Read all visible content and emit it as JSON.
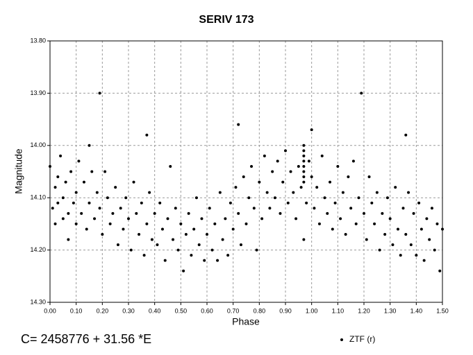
{
  "chart_data": {
    "type": "scatter",
    "title": "SERIV 173",
    "xlabel": "Phase",
    "ylabel": "Magnitude",
    "annotation": "C= 2458776 + 31.56 *E",
    "grid": true,
    "legend_position": "bottom-right",
    "xlim": [
      0,
      1.5
    ],
    "ylim": [
      14.3,
      13.8
    ],
    "xticks": [
      {
        "value": 0,
        "label": "0.00"
      },
      {
        "value": 0.1,
        "label": "0.10"
      },
      {
        "value": 0.2,
        "label": "0.20"
      },
      {
        "value": 0.3,
        "label": "0.30"
      },
      {
        "value": 0.4,
        "label": "0.40"
      },
      {
        "value": 0.5,
        "label": "0.50"
      },
      {
        "value": 0.6,
        "label": "0.60"
      },
      {
        "value": 0.7,
        "label": "0.70"
      },
      {
        "value": 0.8,
        "label": "0.80"
      },
      {
        "value": 0.9,
        "label": "0.90"
      },
      {
        "value": 1.0,
        "label": "1.00"
      },
      {
        "value": 1.1,
        "label": "1.10"
      },
      {
        "value": 1.2,
        "label": "1.20"
      },
      {
        "value": 1.3,
        "label": "1.30"
      },
      {
        "value": 1.4,
        "label": "1.40"
      },
      {
        "value": 1.5,
        "label": "1.50"
      }
    ],
    "yticks": [
      {
        "value": 13.8,
        "label": "13.80"
      },
      {
        "value": 13.9,
        "label": "13.90"
      },
      {
        "value": 14.0,
        "label": "14.00"
      },
      {
        "value": 14.1,
        "label": "14.10"
      },
      {
        "value": 14.2,
        "label": "14.20"
      },
      {
        "value": 14.3,
        "label": "14.30"
      }
    ],
    "x": [
      0.0,
      0.01,
      0.02,
      0.02,
      0.03,
      0.03,
      0.04,
      0.05,
      0.05,
      0.06,
      0.07,
      0.07,
      0.08,
      0.09,
      0.1,
      0.1,
      0.11,
      0.12,
      0.13,
      0.14,
      0.15,
      0.15,
      0.16,
      0.17,
      0.18,
      0.19,
      0.19,
      0.2,
      0.21,
      0.22,
      0.23,
      0.24,
      0.25,
      0.26,
      0.27,
      0.28,
      0.29,
      0.3,
      0.31,
      0.32,
      0.33,
      0.34,
      0.35,
      0.36,
      0.37,
      0.37,
      0.38,
      0.39,
      0.4,
      0.41,
      0.42,
      0.43,
      0.44,
      0.45,
      0.46,
      0.47,
      0.48,
      0.49,
      0.5,
      0.51,
      0.52,
      0.53,
      0.54,
      0.55,
      0.56,
      0.57,
      0.58,
      0.59,
      0.6,
      0.61,
      0.62,
      0.63,
      0.64,
      0.65,
      0.66,
      0.67,
      0.68,
      0.69,
      0.7,
      0.71,
      0.72,
      0.72,
      0.73,
      0.74,
      0.75,
      0.76,
      0.77,
      0.78,
      0.79,
      0.8,
      0.81,
      0.82,
      0.83,
      0.84,
      0.85,
      0.86,
      0.87,
      0.88,
      0.89,
      0.9,
      0.91,
      0.92,
      0.93,
      0.94,
      0.95,
      0.96,
      0.97,
      0.97,
      0.97,
      0.97,
      0.97,
      0.97,
      0.97,
      0.97,
      0.97,
      0.98,
      0.99,
      1.0,
      1.0,
      1.01,
      1.02,
      1.03,
      1.04,
      1.05,
      1.06,
      1.07,
      1.08,
      1.09,
      1.1,
      1.11,
      1.12,
      1.13,
      1.14,
      1.15,
      1.16,
      1.17,
      1.18,
      1.19,
      1.2,
      1.21,
      1.22,
      1.23,
      1.24,
      1.25,
      1.26,
      1.27,
      1.28,
      1.29,
      1.3,
      1.31,
      1.32,
      1.33,
      1.34,
      1.35,
      1.36,
      1.36,
      1.37,
      1.38,
      1.39,
      1.4,
      1.41,
      1.42,
      1.43,
      1.44,
      1.45,
      1.46,
      1.47,
      1.48,
      1.49,
      1.5
    ],
    "series": [
      {
        "name": "ZTF (r)",
        "color": "#000000",
        "values": [
          14.04,
          14.12,
          14.08,
          14.15,
          14.06,
          14.11,
          14.02,
          14.1,
          14.14,
          14.07,
          14.13,
          14.18,
          14.05,
          14.11,
          14.09,
          14.15,
          14.03,
          14.13,
          14.07,
          14.16,
          14.0,
          14.11,
          14.05,
          14.14,
          14.09,
          13.9,
          14.12,
          14.17,
          14.05,
          14.1,
          14.15,
          14.13,
          14.08,
          14.19,
          14.12,
          14.16,
          14.1,
          14.14,
          14.2,
          14.07,
          14.13,
          14.17,
          14.11,
          14.21,
          13.98,
          14.15,
          14.09,
          14.18,
          14.13,
          14.19,
          14.11,
          14.16,
          14.22,
          14.14,
          14.04,
          14.18,
          14.12,
          14.2,
          14.15,
          14.24,
          14.17,
          14.13,
          14.21,
          14.16,
          14.1,
          14.19,
          14.14,
          14.22,
          14.17,
          14.12,
          14.2,
          14.15,
          14.22,
          14.09,
          14.18,
          14.14,
          14.21,
          14.11,
          14.16,
          14.08,
          13.96,
          14.13,
          14.19,
          14.06,
          14.15,
          14.1,
          14.04,
          14.12,
          14.2,
          14.07,
          14.14,
          14.02,
          14.09,
          14.12,
          14.05,
          14.1,
          14.03,
          14.13,
          14.07,
          14.01,
          14.11,
          14.05,
          14.09,
          14.14,
          14.04,
          14.08,
          14.0,
          14.01,
          14.02,
          14.03,
          14.04,
          14.05,
          14.06,
          14.07,
          14.18,
          14.11,
          14.03,
          13.97,
          14.06,
          14.12,
          14.08,
          14.15,
          14.02,
          14.1,
          14.13,
          14.07,
          14.16,
          14.11,
          14.04,
          14.14,
          14.09,
          14.17,
          14.06,
          14.12,
          14.03,
          14.15,
          14.1,
          13.9,
          14.13,
          14.18,
          14.06,
          14.11,
          14.15,
          14.09,
          14.2,
          14.13,
          14.17,
          14.1,
          14.14,
          14.19,
          14.08,
          14.16,
          14.21,
          14.12,
          13.98,
          14.17,
          14.09,
          14.19,
          14.13,
          14.21,
          14.11,
          14.16,
          14.22,
          14.14,
          14.18,
          14.12,
          14.2,
          14.15,
          14.24,
          14.16
        ]
      }
    ]
  }
}
